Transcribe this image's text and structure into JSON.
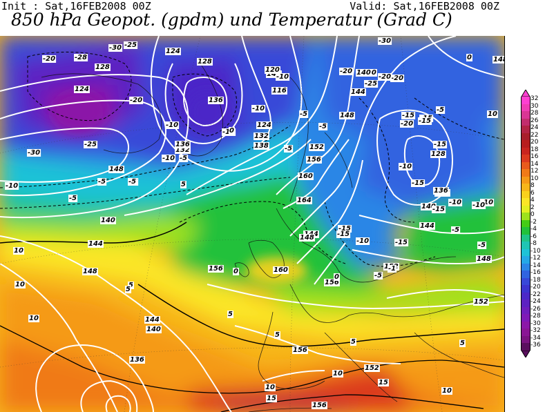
{
  "header": {
    "init": "Init : Sat,16FEB2008 00Z",
    "valid": "Valid: Sat,16FEB2008 00Z",
    "title": "850 hPa Geopot. (gpdm) und Temperatur (Grad C)"
  },
  "legend": {
    "levels": [
      {
        "label": "32",
        "color": "#ff3fd1"
      },
      {
        "label": "30",
        "color": "#f03cb4"
      },
      {
        "label": "28",
        "color": "#d93594"
      },
      {
        "label": "26",
        "color": "#c22d6d"
      },
      {
        "label": "24",
        "color": "#b32445"
      },
      {
        "label": "22",
        "color": "#a81e2b"
      },
      {
        "label": "20",
        "color": "#b71e1e"
      },
      {
        "label": "18",
        "color": "#c9251f"
      },
      {
        "label": "16",
        "color": "#dc3a1f"
      },
      {
        "label": "14",
        "color": "#e85a1c"
      },
      {
        "label": "12",
        "color": "#f07a18"
      },
      {
        "label": "10",
        "color": "#f59a18"
      },
      {
        "label": "8",
        "color": "#f7b61a"
      },
      {
        "label": "6",
        "color": "#fad11d"
      },
      {
        "label": "4",
        "color": "#fbe627"
      },
      {
        "label": "2",
        "color": "#e3ef22"
      },
      {
        "label": "0",
        "color": "#9ee21c"
      },
      {
        "label": "-2",
        "color": "#44cc16"
      },
      {
        "label": "-4",
        "color": "#22c13a"
      },
      {
        "label": "-6",
        "color": "#20c486"
      },
      {
        "label": "-8",
        "color": "#1fc5b4"
      },
      {
        "label": "-10",
        "color": "#1ec2d7"
      },
      {
        "label": "-12",
        "color": "#24a8e6"
      },
      {
        "label": "-14",
        "color": "#2b86e6"
      },
      {
        "label": "-16",
        "color": "#3164e0"
      },
      {
        "label": "-18",
        "color": "#3748d8"
      },
      {
        "label": "-20",
        "color": "#3b34cf"
      },
      {
        "label": "-22",
        "color": "#4b28c8"
      },
      {
        "label": "-24",
        "color": "#5d22c2"
      },
      {
        "label": "-26",
        "color": "#6f1ebd"
      },
      {
        "label": "-28",
        "color": "#7f1ab7"
      },
      {
        "label": "-30",
        "color": "#8c18a8"
      },
      {
        "label": "-32",
        "color": "#8a1695"
      },
      {
        "label": "-34",
        "color": "#7a1480"
      },
      {
        "label": "-36",
        "color": "#5a0f5e"
      }
    ]
  },
  "map": {
    "temperature_labels": [
      "-20",
      "-25",
      "-30",
      "-28",
      "-20",
      "-10",
      "-10",
      "-5",
      "-25",
      "-30",
      "-15",
      "-10",
      "-5",
      "-10",
      "-5",
      "0",
      "-5",
      "5",
      "-20",
      "-25",
      "-10",
      "-15",
      "-20",
      "-5",
      "0",
      "-15",
      "-20",
      "-20",
      "-30",
      "-15",
      "-15",
      "-10",
      "-5",
      "-15",
      "-15",
      "-10",
      "-15",
      "-10",
      "-10",
      "-5",
      "-5",
      "-1",
      "-5",
      "0",
      "0",
      "5",
      "10",
      "10",
      "10",
      "5",
      "5",
      "5",
      "5",
      "10",
      "15",
      "10",
      "15",
      "10",
      "5",
      "10",
      "-10",
      "-5",
      "-5",
      "-5",
      "-15",
      "-15"
    ],
    "geopotential_labels": [
      "124",
      "128",
      "120",
      "124",
      "128",
      "132",
      "136",
      "136",
      "140",
      "144",
      "148",
      "140",
      "144",
      "148",
      "152",
      "156",
      "160",
      "164",
      "156",
      "156",
      "160",
      "148",
      "144",
      "140",
      "136",
      "128",
      "132",
      "136",
      "140",
      "144",
      "148",
      "152",
      "152",
      "156",
      "152",
      "156",
      "144",
      "148",
      "120",
      "116",
      "124",
      "132",
      "138",
      "140",
      "144",
      "148"
    ]
  }
}
